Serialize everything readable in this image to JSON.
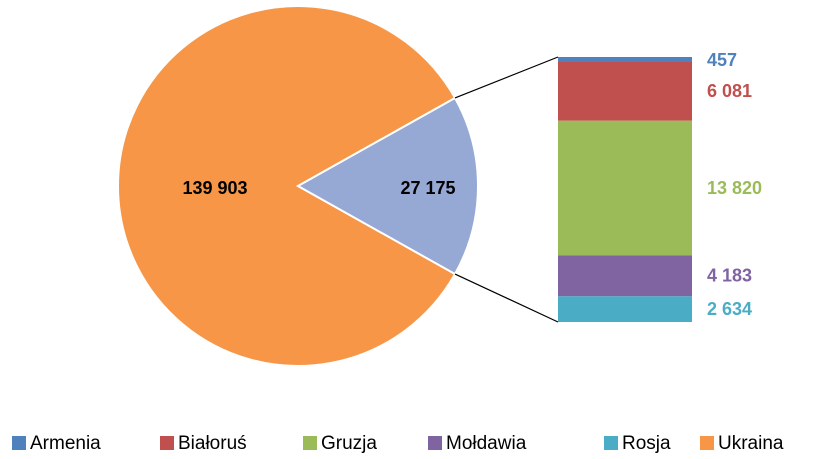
{
  "chart_data": {
    "type": "pie-of-bar",
    "categories": [
      "Armenia",
      "Białoruś",
      "Gruzja",
      "Mołdawia",
      "Rosja",
      "Ukraina"
    ],
    "values": [
      457,
      6081,
      13820,
      4183,
      2634,
      139903
    ],
    "value_labels": [
      "457",
      "6 081",
      "13 820",
      "4 183",
      "2 634",
      "139 903"
    ],
    "colors": [
      "#4f81bd",
      "#c0504d",
      "#9bbb59",
      "#8064a2",
      "#4bacc6",
      "#f79646"
    ],
    "other": {
      "value": 27175,
      "label": "27 175",
      "color": "#95a9d4"
    },
    "legend": "bottom"
  }
}
